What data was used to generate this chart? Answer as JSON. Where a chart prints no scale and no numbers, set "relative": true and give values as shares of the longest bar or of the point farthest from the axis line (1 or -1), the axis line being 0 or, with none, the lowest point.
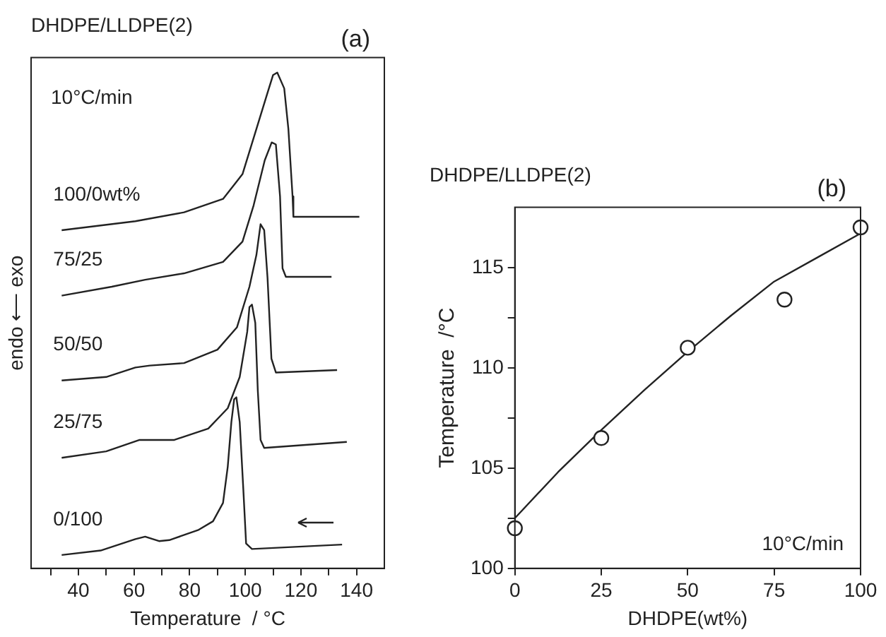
{
  "chart_data": [
    {
      "type": "line",
      "title": "DHDPE/LLDPE(2)",
      "xlabel": "Temperature  / °C",
      "ylabel": "endo ⟵ exo",
      "annotations": [
        "(a)",
        "10°C/min"
      ],
      "relative": true,
      "tick_labels": "x",
      "marker": "none",
      "xlim": [
        23,
        150
      ],
      "xticks": [
        {
          "value": 30,
          "label": null
        },
        40,
        {
          "value": 50,
          "label": null
        },
        60,
        {
          "value": 70,
          "label": null
        },
        80,
        {
          "value": 90,
          "label": null
        },
        100,
        {
          "value": 110,
          "label": null
        },
        120,
        {
          "value": 130,
          "label": null
        },
        140
      ],
      "series": [
        {
          "name": "100/0wt%",
          "color": "#222222",
          "x": [
            34,
            60.5,
            78,
            92,
            99,
            104,
            108,
            110,
            111.5,
            114,
            115.5,
            117,
            117.3,
            130,
            141
          ],
          "values": [
            0.682,
            0.7,
            0.718,
            0.745,
            0.795,
            0.886,
            0.959,
            0.995,
            1,
            0.968,
            0.886,
            0.75,
            0.709,
            0.709,
            0.709
          ]
        },
        {
          "name": "75/25",
          "color": "#222222",
          "x": [
            34,
            52,
            64,
            78,
            92,
            99,
            103,
            107,
            109.5,
            111,
            112.5,
            113.4,
            114.6,
            131
          ],
          "values": [
            0.55,
            0.568,
            0.582,
            0.595,
            0.618,
            0.659,
            0.732,
            0.823,
            0.859,
            0.855,
            0.75,
            0.605,
            0.588,
            0.588
          ]
        },
        {
          "name": "50/50",
          "color": "#222222",
          "x": [
            34,
            50,
            60.5,
            65.7,
            78,
            90,
            97,
            101.5,
            104,
            105.5,
            106.8,
            108,
            109.4,
            111,
            133
          ],
          "values": [
            0.379,
            0.386,
            0.405,
            0.409,
            0.414,
            0.441,
            0.486,
            0.568,
            0.632,
            0.694,
            0.682,
            0.586,
            0.423,
            0.395,
            0.4
          ]
        },
        {
          "name": "25/75",
          "color": "#222222",
          "x": [
            34,
            50,
            62,
            65.5,
            74.5,
            86.7,
            93.7,
            98,
            100.7,
            101.5,
            102.4,
            103.6,
            104.5,
            105.5,
            106.8,
            136.5
          ],
          "values": [
            0.223,
            0.236,
            0.259,
            0.259,
            0.259,
            0.282,
            0.323,
            0.386,
            0.477,
            0.527,
            0.532,
            0.495,
            0.359,
            0.259,
            0.243,
            0.255
          ]
        },
        {
          "name": "0/100",
          "color": "#222222",
          "x": [
            34,
            48,
            60.5,
            64,
            69,
            72.7,
            83,
            88.4,
            92,
            93.7,
            95,
            96,
            96.8,
            98,
            99.3,
            100.3,
            102.4,
            134.8
          ],
          "values": [
            0.027,
            0.036,
            0.059,
            0.064,
            0.055,
            0.057,
            0.077,
            0.095,
            0.132,
            0.205,
            0.295,
            0.341,
            0.345,
            0.295,
            0.159,
            0.05,
            0.039,
            0.048
          ]
        }
      ]
    },
    {
      "type": "scatter",
      "title": "DHDPE/LLDPE(2)",
      "xlabel": "DHDPE(wt%)",
      "ylabel": "Temperature  /°C",
      "annotations": [
        "(b)",
        "10°C/min"
      ],
      "marker": "circle",
      "xlim": [
        0,
        100
      ],
      "xticks": [
        0,
        25,
        50,
        75,
        100
      ],
      "ylim": [
        100,
        118
      ],
      "yticks": [
        100,
        {
          "value": 102.5,
          "label": null
        },
        105,
        {
          "value": 107.5,
          "label": null
        },
        110,
        {
          "value": 112.5,
          "label": null
        },
        115
      ],
      "series": [
        {
          "color": "#222222",
          "x": [
            0,
            25,
            50,
            78,
            100
          ],
          "values": [
            102,
            106.5,
            111,
            113.4,
            117
          ]
        },
        {
          "type": "line",
          "marker": "none",
          "color": "#222222",
          "x": [
            0,
            12.5,
            25,
            37.5,
            50,
            62.5,
            75,
            87.5,
            100
          ],
          "values": [
            102.5,
            104.8,
            106.9,
            108.9,
            110.8,
            112.6,
            114.3,
            115.5,
            116.7
          ]
        }
      ]
    }
  ]
}
